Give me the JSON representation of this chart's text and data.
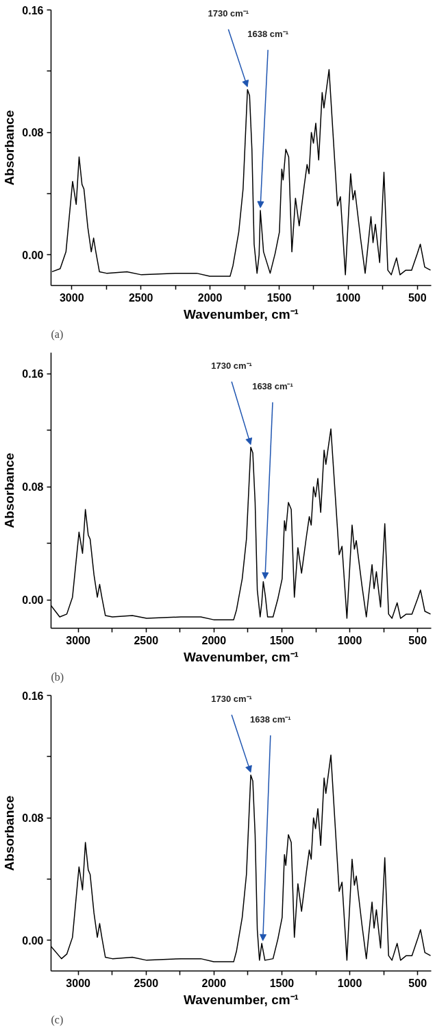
{
  "chart_data": [
    {
      "type": "line",
      "xlabel": "Wavenumber, cm⁻¹",
      "ylabel": "Absorbance",
      "xlim": [
        3150,
        400
      ],
      "ylim": [
        -0.02,
        0.16
      ],
      "xticks": [
        3000,
        {
          "value": 2750,
          "label": null
        },
        2500,
        {
          "value": 2250,
          "label": null
        },
        2000,
        {
          "value": 1750,
          "label": null
        },
        1500,
        {
          "value": 1250,
          "label": null
        },
        1000,
        {
          "value": 750,
          "label": null
        },
        500
      ],
      "yticks": [
        {
          "value": 0,
          "label": "0.00"
        },
        {
          "value": 0.04,
          "label": null
        },
        {
          "value": 0.08,
          "label": "0.08"
        },
        {
          "value": 0.12,
          "label": null
        },
        {
          "value": 0.16,
          "label": "0.16"
        }
      ],
      "grid": false,
      "annotations": [
        {
          "text": "1730 cm⁻¹",
          "x": 1730,
          "y": 0.108
        },
        {
          "text": "1638 cm⁻¹",
          "x": 1636,
          "y": 0.029
        },
        "(a)"
      ],
      "series": [
        {
          "color": "#000000",
          "x": [
            3143,
            3084,
            3042,
            2994,
            2968,
            2947,
            2926,
            2912,
            2884,
            2859,
            2842,
            2826,
            2800,
            2748,
            2601,
            2496,
            2244,
            2097,
            2002,
            1855,
            1834,
            1792,
            1761,
            1729,
            1714,
            1697,
            1681,
            1660,
            1645,
            1636,
            1613,
            1565,
            1529,
            1498,
            1481,
            1471,
            1452,
            1431,
            1408,
            1382,
            1355,
            1319,
            1298,
            1284,
            1267,
            1252,
            1235,
            1214,
            1189,
            1176,
            1139,
            1078,
            1057,
            1021,
            983,
            966,
            952,
            910,
            878,
            836,
            821,
            804,
            773,
            742,
            714,
            689,
            651,
            626,
            584,
            542,
            500,
            479,
            447,
            405
          ],
          "values": [
            -0.011,
            -0.009,
            0.002,
            0.048,
            0.033,
            0.064,
            0.046,
            0.043,
            0.018,
            0.002,
            0.011,
            0.002,
            -0.011,
            -0.012,
            -0.011,
            -0.013,
            -0.012,
            -0.012,
            -0.014,
            -0.014,
            -0.007,
            0.015,
            0.043,
            0.108,
            0.104,
            0.069,
            0.007,
            -0.012,
            0.0,
            0.029,
            0.002,
            -0.012,
            0.001,
            0.015,
            0.056,
            0.049,
            0.069,
            0.064,
            0.002,
            0.037,
            0.019,
            0.045,
            0.059,
            0.053,
            0.08,
            0.073,
            0.086,
            0.062,
            0.106,
            0.096,
            0.121,
            0.032,
            0.038,
            -0.013,
            0.053,
            0.036,
            0.042,
            0.01,
            -0.012,
            0.025,
            0.008,
            0.02,
            -0.005,
            0.054,
            -0.01,
            -0.013,
            -0.002,
            -0.013,
            -0.01,
            -0.01,
            0.001,
            0.007,
            -0.008,
            -0.01
          ]
        }
      ]
    },
    {
      "type": "line",
      "xlabel": "Wavenumber, cm⁻¹",
      "ylabel": "Absorbance",
      "xlim": [
        3200,
        400
      ],
      "ylim": [
        -0.02,
        0.175
      ],
      "xticks": [
        3000,
        {
          "value": 2750,
          "label": null
        },
        2500,
        {
          "value": 2250,
          "label": null
        },
        2000,
        {
          "value": 1750,
          "label": null
        },
        1500,
        {
          "value": 1250,
          "label": null
        },
        1000,
        {
          "value": 750,
          "label": null
        },
        500
      ],
      "yticks": [
        {
          "value": 0,
          "label": "0.00"
        },
        {
          "value": 0.04,
          "label": null
        },
        {
          "value": 0.08,
          "label": "0.08"
        },
        {
          "value": 0.12,
          "label": null
        },
        {
          "value": 0.16,
          "label": "0.16"
        }
      ],
      "grid": false,
      "annotations": [
        {
          "text": "1730 cm⁻¹",
          "x": 1730,
          "y": 0.108
        },
        {
          "text": "1638 cm⁻¹",
          "x": 1624,
          "y": 0.013
        },
        "(b)"
      ],
      "series": [
        {
          "color": "#000000",
          "x": [
            3200,
            3136,
            3084,
            3042,
            2994,
            2968,
            2947,
            2926,
            2912,
            2884,
            2859,
            2842,
            2826,
            2800,
            2748,
            2601,
            2496,
            2244,
            2097,
            2002,
            1855,
            1834,
            1792,
            1761,
            1729,
            1714,
            1697,
            1681,
            1660,
            1648,
            1637,
            1622,
            1605,
            1565,
            1529,
            1498,
            1481,
            1471,
            1452,
            1431,
            1408,
            1382,
            1355,
            1319,
            1298,
            1284,
            1267,
            1252,
            1235,
            1214,
            1189,
            1176,
            1139,
            1078,
            1057,
            1021,
            983,
            966,
            952,
            910,
            878,
            836,
            821,
            804,
            773,
            742,
            714,
            689,
            651,
            626,
            584,
            542,
            500,
            479,
            447,
            405
          ],
          "values": [
            -0.004,
            -0.012,
            -0.01,
            0.002,
            0.048,
            0.033,
            0.064,
            0.046,
            0.043,
            0.018,
            0.002,
            0.011,
            0.002,
            -0.011,
            -0.012,
            -0.011,
            -0.013,
            -0.012,
            -0.012,
            -0.014,
            -0.014,
            -0.007,
            0.015,
            0.043,
            0.108,
            0.104,
            0.069,
            0.007,
            -0.012,
            -0.002,
            0.013,
            0.003,
            -0.012,
            -0.012,
            0.001,
            0.015,
            0.056,
            0.049,
            0.069,
            0.064,
            0.002,
            0.037,
            0.019,
            0.045,
            0.059,
            0.053,
            0.08,
            0.073,
            0.086,
            0.062,
            0.106,
            0.096,
            0.121,
            0.032,
            0.038,
            -0.013,
            0.053,
            0.036,
            0.042,
            0.01,
            -0.012,
            0.025,
            0.008,
            0.02,
            -0.005,
            0.054,
            -0.01,
            -0.013,
            -0.002,
            -0.013,
            -0.01,
            -0.01,
            0.001,
            0.007,
            -0.008,
            -0.01
          ]
        }
      ]
    },
    {
      "type": "line",
      "xlabel": "Wavenumber, cm⁻¹",
      "ylabel": "Absorbance",
      "xlim": [
        3200,
        400
      ],
      "ylim": [
        -0.02,
        0.16
      ],
      "xticks": [
        3000,
        {
          "value": 2750,
          "label": null
        },
        2500,
        {
          "value": 2250,
          "label": null
        },
        2000,
        {
          "value": 1750,
          "label": null
        },
        1500,
        {
          "value": 1250,
          "label": null
        },
        1000,
        {
          "value": 750,
          "label": null
        },
        500
      ],
      "yticks": [
        {
          "value": 0,
          "label": "0.00"
        },
        {
          "value": 0.04,
          "label": null
        },
        {
          "value": 0.08,
          "label": "0.08"
        },
        {
          "value": 0.12,
          "label": null
        },
        {
          "value": 0.16,
          "label": "0.16"
        }
      ],
      "grid": false,
      "annotations": [
        {
          "text": "1730 cm⁻¹",
          "x": 1730,
          "y": 0.108
        },
        {
          "text": "1638 cm⁻¹",
          "x": 1640,
          "y": -0.002
        },
        "(c)"
      ],
      "series": [
        {
          "color": "#000000",
          "x": [
            3200,
            3123,
            3084,
            3042,
            2994,
            2968,
            2947,
            2926,
            2912,
            2884,
            2859,
            2842,
            2826,
            2800,
            2748,
            2601,
            2496,
            2244,
            2097,
            2002,
            1855,
            1834,
            1792,
            1761,
            1729,
            1714,
            1697,
            1681,
            1665,
            1648,
            1625,
            1565,
            1529,
            1498,
            1481,
            1471,
            1452,
            1431,
            1408,
            1382,
            1355,
            1319,
            1298,
            1284,
            1267,
            1252,
            1235,
            1214,
            1189,
            1176,
            1139,
            1078,
            1057,
            1021,
            983,
            966,
            952,
            910,
            878,
            836,
            821,
            804,
            773,
            742,
            714,
            689,
            651,
            626,
            584,
            542,
            500,
            479,
            447,
            405
          ],
          "values": [
            -0.004,
            -0.012,
            -0.009,
            0.002,
            0.048,
            0.033,
            0.064,
            0.046,
            0.043,
            0.018,
            0.002,
            0.011,
            0.002,
            -0.011,
            -0.012,
            -0.011,
            -0.013,
            -0.012,
            -0.012,
            -0.014,
            -0.014,
            -0.007,
            0.015,
            0.043,
            0.108,
            0.104,
            0.069,
            0.007,
            -0.013,
            -0.002,
            -0.013,
            -0.012,
            0.001,
            0.015,
            0.056,
            0.049,
            0.069,
            0.064,
            0.002,
            0.037,
            0.019,
            0.045,
            0.059,
            0.053,
            0.08,
            0.073,
            0.086,
            0.062,
            0.106,
            0.096,
            0.121,
            0.032,
            0.038,
            -0.013,
            0.053,
            0.036,
            0.042,
            0.01,
            -0.012,
            0.025,
            0.008,
            0.02,
            -0.005,
            0.054,
            -0.01,
            -0.013,
            -0.002,
            -0.013,
            -0.01,
            -0.01,
            0.001,
            0.007,
            -0.008,
            -0.01
          ]
        }
      ]
    }
  ]
}
